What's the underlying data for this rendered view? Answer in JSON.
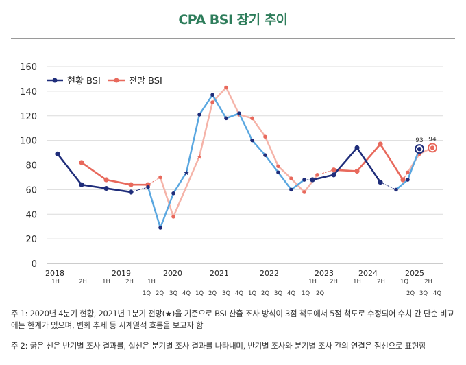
{
  "title": "CPA BSI 장기 추이",
  "notes": [
    "주 1: 2020년 4분기 현황, 2021년 1분기 전망(★)을 기준으로 BSI 산출 조사 방식이 3점 척도에서 5점 척도로 수정되어 수치 간 단순 비교에는 한계가 있으며, 변화 추세 등 시계열적 흐름을 보고자 함",
    "주 2: 굵은 선은 반기별 조사 결과를, 실선은 분기별 조사 결과를 나타내며, 반기별 조사와 분기별 조사 간의 연결은 점선으로 표현함"
  ],
  "colors": {
    "current_dark": "#1f2d7a",
    "current_light": "#5aa7e0",
    "outlook_dark": "#e8695c",
    "outlook_light": "#f5b3a8",
    "title": "#2e7d5b"
  },
  "chart_data": {
    "type": "line",
    "ylim": [
      0,
      160
    ],
    "yticks": [
      0,
      20,
      40,
      60,
      80,
      100,
      120,
      140,
      160
    ],
    "grid": true,
    "legend_position": "top-left",
    "legend": [
      "현황 BSI",
      "전망 BSI"
    ],
    "years": [
      "2018",
      "2019",
      "2020",
      "2021",
      "2022",
      "2023",
      "2024",
      "2025"
    ],
    "sub_labels": [
      "1H",
      "2H",
      "1H",
      "2H",
      "1H",
      "1Q",
      "2Q",
      "3Q",
      "4Q",
      "1Q",
      "2Q",
      "3Q",
      "4Q",
      "1Q",
      "2Q",
      "3Q",
      "4Q",
      "1Q",
      "2Q",
      "1H",
      "2H",
      "1H",
      "2H",
      "1Q",
      "2Q",
      "3Q",
      "4Q"
    ],
    "annotations": [
      {
        "text": "93",
        "series": "현황 BSI",
        "at": "2025 3Q"
      },
      {
        "text": "94",
        "series": "전망 BSI",
        "at": "2025 4Q"
      }
    ],
    "star_points": [
      {
        "series": "현황 BSI",
        "at": "2020 4Q",
        "value": 74
      },
      {
        "series": "전망 BSI",
        "at": "2021 1Q",
        "value": 87
      }
    ],
    "series": [
      {
        "name": "현황 BSI",
        "points": [
          {
            "t": "2018 1H",
            "v": 89,
            "s": "h"
          },
          {
            "t": "2018 2H",
            "v": 64,
            "s": "h"
          },
          {
            "t": "2019 1H",
            "v": 61,
            "s": "h"
          },
          {
            "t": "2019 2H",
            "v": 58,
            "s": "h"
          },
          {
            "t": "2020 1H",
            "v": 62,
            "s": "q"
          },
          {
            "t": "2020 2Q",
            "v": 29,
            "s": "q"
          },
          {
            "t": "2020 3Q",
            "v": 57,
            "s": "q"
          },
          {
            "t": "2020 4Q",
            "v": 74,
            "s": "q"
          },
          {
            "t": "2021 1Q",
            "v": 121,
            "s": "q"
          },
          {
            "t": "2021 2Q",
            "v": 137,
            "s": "q"
          },
          {
            "t": "2021 3Q",
            "v": 118,
            "s": "q"
          },
          {
            "t": "2021 4Q",
            "v": 122,
            "s": "q"
          },
          {
            "t": "2022 1Q",
            "v": 100,
            "s": "q"
          },
          {
            "t": "2022 2Q",
            "v": 88,
            "s": "q"
          },
          {
            "t": "2022 3Q",
            "v": 74,
            "s": "q"
          },
          {
            "t": "2022 4Q",
            "v": 60,
            "s": "q"
          },
          {
            "t": "2023 1Q",
            "v": 68,
            "s": "q"
          },
          {
            "t": "2023 1H",
            "v": 68,
            "s": "h"
          },
          {
            "t": "2023 2H",
            "v": 72,
            "s": "h"
          },
          {
            "t": "2024 1H",
            "v": 94,
            "s": "h"
          },
          {
            "t": "2024 2H",
            "v": 66,
            "s": "h"
          },
          {
            "t": "2025 1Q",
            "v": 60,
            "s": "q"
          },
          {
            "t": "2025 2Q",
            "v": 68,
            "s": "q"
          },
          {
            "t": "2025 3Q",
            "v": 93,
            "s": "q"
          }
        ]
      },
      {
        "name": "전망 BSI",
        "points": [
          {
            "t": "2018 2H",
            "v": 82,
            "s": "h"
          },
          {
            "t": "2019 1H",
            "v": 68,
            "s": "h"
          },
          {
            "t": "2019 2H",
            "v": 64,
            "s": "h"
          },
          {
            "t": "2020 1H",
            "v": 64,
            "s": "h"
          },
          {
            "t": "2020 2Q",
            "v": 70,
            "s": "q"
          },
          {
            "t": "2020 3Q",
            "v": 38,
            "s": "q"
          },
          {
            "t": "2021 1Q",
            "v": 87,
            "s": "q"
          },
          {
            "t": "2021 2Q",
            "v": 131,
            "s": "q"
          },
          {
            "t": "2021 3Q",
            "v": 143,
            "s": "q"
          },
          {
            "t": "2021 4Q",
            "v": 121,
            "s": "q"
          },
          {
            "t": "2022 1Q",
            "v": 118,
            "s": "q"
          },
          {
            "t": "2022 2Q",
            "v": 103,
            "s": "q"
          },
          {
            "t": "2022 3Q",
            "v": 79,
            "s": "q"
          },
          {
            "t": "2022 4Q",
            "v": 69,
            "s": "q"
          },
          {
            "t": "2023 1Q",
            "v": 58,
            "s": "q"
          },
          {
            "t": "2023 2Q",
            "v": 72,
            "s": "q"
          },
          {
            "t": "2023 2H",
            "v": 76,
            "s": "h"
          },
          {
            "t": "2024 1H",
            "v": 75,
            "s": "h"
          },
          {
            "t": "2024 2H",
            "v": 97,
            "s": "h"
          },
          {
            "t": "2025 1H",
            "v": 68,
            "s": "h"
          },
          {
            "t": "2025 2Q",
            "v": 74,
            "s": "q"
          },
          {
            "t": "2025 3Q",
            "v": 89,
            "s": "q"
          },
          {
            "t": "2025 4Q",
            "v": 94,
            "s": "q"
          }
        ]
      }
    ]
  }
}
